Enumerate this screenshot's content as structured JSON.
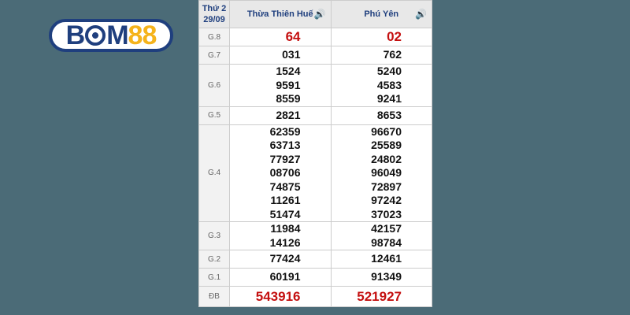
{
  "logo": {
    "text_left": "B",
    "text_mid": "M",
    "text_right": "88"
  },
  "header": {
    "day": "Thứ 2",
    "date": "29/09",
    "provinces": [
      "Thừa Thiên Huế",
      "Phú Yên"
    ],
    "speaker_icon": "speaker-icon"
  },
  "rows": [
    {
      "label": "G.8",
      "c1": [
        "64"
      ],
      "c2": [
        "02"
      ],
      "red": true
    },
    {
      "label": "G.7",
      "c1": [
        "031"
      ],
      "c2": [
        "762"
      ]
    },
    {
      "label": "G.6",
      "c1": [
        "1524",
        "9591",
        "8559"
      ],
      "c2": [
        "5240",
        "4583",
        "9241"
      ]
    },
    {
      "label": "G.5",
      "c1": [
        "2821"
      ],
      "c2": [
        "8653"
      ]
    },
    {
      "label": "G.4",
      "c1": [
        "62359",
        "63713",
        "77927",
        "08706",
        "74875",
        "11261",
        "51474"
      ],
      "c2": [
        "96670",
        "25589",
        "24802",
        "96049",
        "72897",
        "97242",
        "37023"
      ]
    },
    {
      "label": "G.3",
      "c1": [
        "11984",
        "14126"
      ],
      "c2": [
        "42157",
        "98784"
      ]
    },
    {
      "label": "G.2",
      "c1": [
        "77424"
      ],
      "c2": [
        "12461"
      ]
    },
    {
      "label": "G.1",
      "c1": [
        "60191"
      ],
      "c2": [
        "91349"
      ]
    },
    {
      "label": "ĐB",
      "c1": [
        "543916"
      ],
      "c2": [
        "521927"
      ],
      "red": true
    }
  ]
}
